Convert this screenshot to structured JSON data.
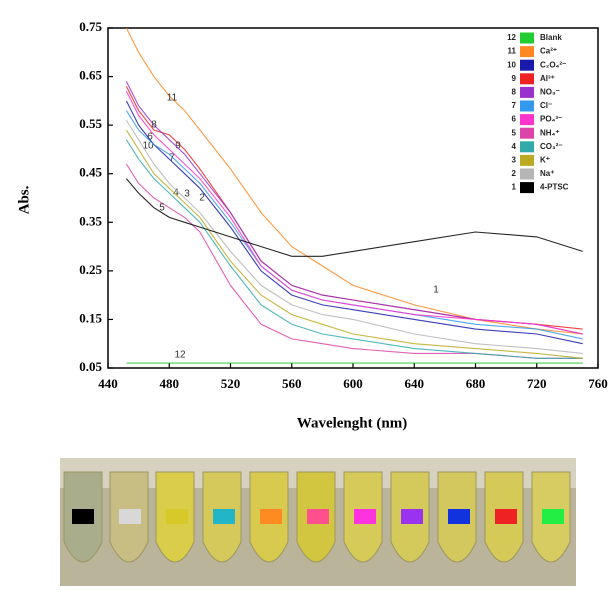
{
  "chart_data": {
    "type": "line",
    "x_label": "Wavelenght (nm)",
    "y_label": "Abs.",
    "xlim": [
      440,
      760
    ],
    "ylim": [
      0.05,
      0.75
    ],
    "xticks": [
      440,
      480,
      520,
      560,
      600,
      640,
      680,
      720,
      760
    ],
    "yticks": [
      0.05,
      0.15,
      0.25,
      0.35,
      0.45,
      0.55,
      0.65,
      0.75
    ],
    "x": [
      452,
      460,
      470,
      480,
      490,
      500,
      520,
      540,
      560,
      580,
      600,
      640,
      680,
      720,
      750
    ],
    "series": [
      {
        "label": "12",
        "name": "Blank",
        "color": "#22cc33",
        "values": [
          0.06,
          0.06,
          0.06,
          0.06,
          0.06,
          0.06,
          0.06,
          0.06,
          0.06,
          0.06,
          0.06,
          0.06,
          0.06,
          0.06,
          0.06
        ]
      },
      {
        "label": "11",
        "name": "Ca²⁺",
        "color": "#ff8822",
        "values": [
          0.75,
          0.7,
          0.65,
          0.61,
          0.58,
          0.54,
          0.46,
          0.37,
          0.3,
          0.26,
          0.22,
          0.18,
          0.15,
          0.13,
          0.12
        ]
      },
      {
        "label": "10",
        "name": "C₂O₄²⁻",
        "color": "#1a1aaa",
        "values": [
          0.6,
          0.55,
          0.51,
          0.48,
          0.45,
          0.42,
          0.34,
          0.25,
          0.2,
          0.18,
          0.17,
          0.15,
          0.13,
          0.12,
          0.1
        ]
      },
      {
        "label": "9",
        "name": "Al³⁺",
        "color": "#ee2222",
        "values": [
          0.63,
          0.58,
          0.54,
          0.53,
          0.5,
          0.46,
          0.37,
          0.27,
          0.22,
          0.2,
          0.19,
          0.17,
          0.15,
          0.14,
          0.13
        ]
      },
      {
        "label": "8",
        "name": "NO₃⁻",
        "color": "#9933cc",
        "values": [
          0.64,
          0.59,
          0.55,
          0.52,
          0.49,
          0.45,
          0.37,
          0.27,
          0.22,
          0.2,
          0.19,
          0.17,
          0.15,
          0.14,
          0.12
        ]
      },
      {
        "label": "7",
        "name": "Cl⁻",
        "color": "#3399ee",
        "values": [
          0.58,
          0.54,
          0.51,
          0.49,
          0.46,
          0.43,
          0.35,
          0.26,
          0.21,
          0.19,
          0.18,
          0.16,
          0.14,
          0.13,
          0.11
        ]
      },
      {
        "label": "6",
        "name": "PO₄³⁻",
        "color": "#ff33cc",
        "values": [
          0.62,
          0.57,
          0.53,
          0.5,
          0.47,
          0.44,
          0.36,
          0.26,
          0.21,
          0.19,
          0.18,
          0.16,
          0.15,
          0.14,
          0.12
        ]
      },
      {
        "label": "5",
        "name": "NH₄⁺",
        "color": "#dd44aa",
        "values": [
          0.47,
          0.43,
          0.4,
          0.38,
          0.36,
          0.33,
          0.22,
          0.14,
          0.11,
          0.1,
          0.09,
          0.08,
          0.08,
          0.07,
          0.07
        ]
      },
      {
        "label": "4",
        "name": "CO₃²⁻",
        "color": "#33aaaa",
        "values": [
          0.52,
          0.48,
          0.44,
          0.41,
          0.38,
          0.35,
          0.26,
          0.18,
          0.14,
          0.12,
          0.11,
          0.09,
          0.08,
          0.07,
          0.07
        ]
      },
      {
        "label": "3",
        "name": "K⁺",
        "color": "#bbaa22",
        "values": [
          0.54,
          0.5,
          0.45,
          0.42,
          0.39,
          0.36,
          0.27,
          0.2,
          0.16,
          0.14,
          0.12,
          0.1,
          0.09,
          0.08,
          0.07
        ]
      },
      {
        "label": "2",
        "name": "Na⁺",
        "color": "#b5b5b5",
        "values": [
          0.56,
          0.52,
          0.47,
          0.43,
          0.4,
          0.37,
          0.29,
          0.22,
          0.18,
          0.16,
          0.15,
          0.12,
          0.1,
          0.09,
          0.08
        ]
      },
      {
        "label": "1",
        "name": "4-PTSC",
        "color": "#000000",
        "values": [
          0.44,
          0.41,
          0.38,
          0.36,
          0.35,
          0.34,
          0.32,
          0.3,
          0.28,
          0.28,
          0.29,
          0.31,
          0.33,
          0.32,
          0.29
        ]
      }
    ]
  }
}
